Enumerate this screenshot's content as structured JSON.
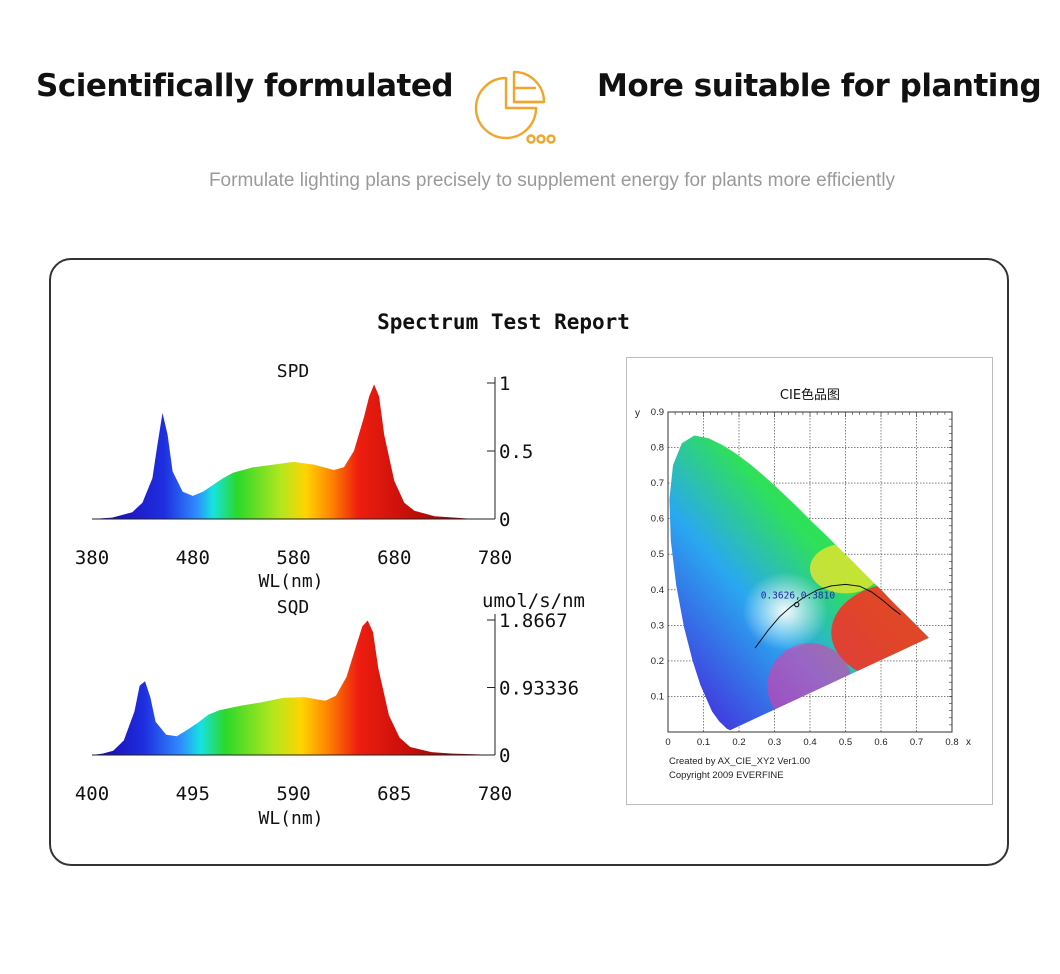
{
  "header": {
    "left_title": "Scientifically formulated",
    "right_title": "More suitable for planting",
    "subtitle": "Formulate lighting plans precisely to supplement energy for plants more efficiently",
    "logo_icon": "pie-chart-icon",
    "accent_color": "#f0a62c"
  },
  "report": {
    "title": "Spectrum Test Report"
  },
  "chart_data": [
    {
      "type": "area",
      "title": "SPD",
      "xlabel": "WL(nm)",
      "ylabel": "",
      "x_ticks": [
        "380",
        "480",
        "580",
        "680",
        "780"
      ],
      "y_ticks": [
        "0",
        "0.5",
        "1"
      ],
      "xlim": [
        380,
        780
      ],
      "ylim": [
        0,
        1
      ],
      "x": [
        380,
        400,
        420,
        430,
        440,
        445,
        450,
        455,
        460,
        470,
        480,
        490,
        500,
        510,
        520,
        540,
        560,
        580,
        600,
        620,
        630,
        640,
        650,
        655,
        660,
        665,
        670,
        680,
        690,
        700,
        720,
        740,
        760,
        780
      ],
      "values": [
        0,
        0.01,
        0.05,
        0.12,
        0.3,
        0.55,
        0.78,
        0.62,
        0.35,
        0.2,
        0.17,
        0.2,
        0.25,
        0.3,
        0.34,
        0.38,
        0.4,
        0.42,
        0.4,
        0.36,
        0.38,
        0.5,
        0.75,
        0.9,
        0.99,
        0.9,
        0.62,
        0.28,
        0.12,
        0.06,
        0.02,
        0.01,
        0,
        0
      ]
    },
    {
      "type": "area",
      "title": "SQD",
      "xlabel": "WL(nm)",
      "ylabel": "umol/s/nm",
      "x_ticks": [
        "400",
        "495",
        "590",
        "685",
        "780"
      ],
      "y_ticks": [
        "0",
        "0.93336",
        "1.8667"
      ],
      "xlim": [
        400,
        780
      ],
      "ylim": [
        0,
        1.8667
      ],
      "x": [
        400,
        410,
        420,
        430,
        440,
        445,
        450,
        455,
        460,
        470,
        480,
        490,
        500,
        510,
        520,
        540,
        560,
        580,
        600,
        620,
        630,
        640,
        650,
        655,
        660,
        665,
        670,
        680,
        690,
        700,
        720,
        740,
        760,
        780
      ],
      "values": [
        0,
        0.02,
        0.06,
        0.2,
        0.6,
        0.96,
        1.02,
        0.8,
        0.46,
        0.28,
        0.26,
        0.35,
        0.45,
        0.56,
        0.62,
        0.68,
        0.73,
        0.79,
        0.8,
        0.75,
        0.82,
        1.08,
        1.55,
        1.78,
        1.86,
        1.7,
        1.2,
        0.55,
        0.24,
        0.11,
        0.04,
        0.02,
        0.01,
        0
      ]
    },
    {
      "type": "scatter",
      "title": "CIE色品图",
      "xlabel": "x",
      "ylabel": "y",
      "x_ticks": [
        "0",
        "0.1",
        "0.2",
        "0.3",
        "0.4",
        "0.5",
        "0.6",
        "0.7",
        "0.8"
      ],
      "y_ticks": [
        "0.1",
        "0.2",
        "0.3",
        "0.4",
        "0.5",
        "0.6",
        "0.7",
        "0.8",
        "0.9"
      ],
      "xlim": [
        0,
        0.8
      ],
      "ylim": [
        0,
        0.9
      ],
      "grid": true,
      "point_label": "0.3626,0.3810",
      "points": [
        {
          "x": 0.3626,
          "y": 0.381
        }
      ],
      "footer_line1": "Created by AX_CIE_XY2 Ver1.00",
      "footer_line2": "Copyright 2009 EVERFINE"
    }
  ]
}
